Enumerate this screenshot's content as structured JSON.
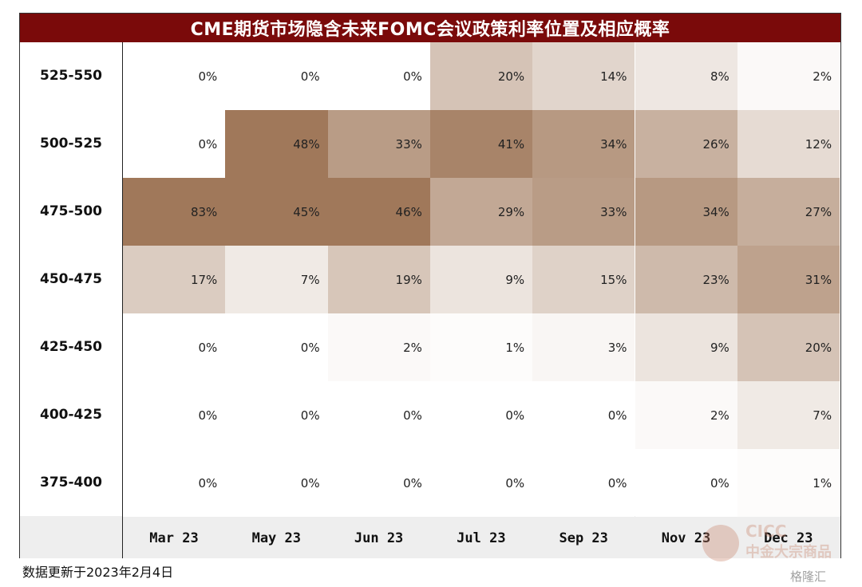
{
  "chart_data": {
    "type": "heatmap",
    "title": "CME期货市场隐含未来FOMC会议政策利率位置及相应概率",
    "rows": [
      "525-550",
      "500-525",
      "475-500",
      "450-475",
      "425-450",
      "400-425",
      "375-400"
    ],
    "columns": [
      "Mar 23",
      "May 23",
      "Jun 23",
      "Jul 23",
      "Sep 23",
      "Nov 23",
      "Dec 23"
    ],
    "values": [
      [
        0,
        0,
        0,
        20,
        14,
        8,
        2
      ],
      [
        0,
        48,
        33,
        41,
        34,
        26,
        12
      ],
      [
        83,
        45,
        46,
        29,
        33,
        34,
        27
      ],
      [
        17,
        7,
        19,
        9,
        15,
        23,
        31
      ],
      [
        0,
        0,
        2,
        1,
        3,
        9,
        20
      ],
      [
        0,
        0,
        0,
        0,
        0,
        2,
        7
      ],
      [
        0,
        0,
        0,
        0,
        0,
        0,
        1
      ]
    ],
    "unit": "%",
    "colors": {
      "high": "#a0785a",
      "low": "#ffffff",
      "title_bg": "#7a0a0a"
    }
  },
  "footnote": "数据更新于2023年2月4日",
  "watermark": {
    "line1": "CICC",
    "line2": "中金大宗商品",
    "line3": "格隆汇"
  }
}
